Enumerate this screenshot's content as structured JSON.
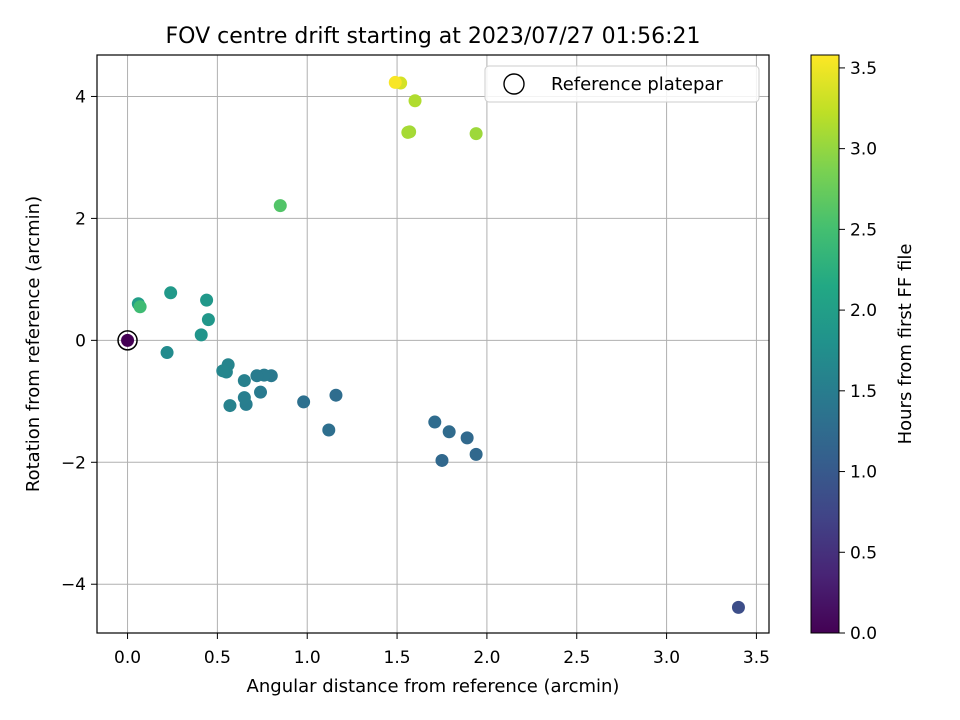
{
  "chart_data": {
    "type": "scatter",
    "title": "FOV centre drift starting at 2023/07/27 01:56:21",
    "xlabel": "Angular distance from reference (arcmin)",
    "ylabel": "Rotation from reference (arcmin)",
    "xlim": [
      -0.17,
      3.57
    ],
    "ylim": [
      -4.8,
      4.68
    ],
    "xticks": [
      "0.0",
      "0.5",
      "1.0",
      "1.5",
      "2.0",
      "2.5",
      "3.0",
      "3.5"
    ],
    "yticks": [
      "−4",
      "−2",
      "0",
      "2",
      "4"
    ],
    "grid": true,
    "legend": {
      "placement": "top-right",
      "entries": [
        "Reference platepar"
      ]
    },
    "colorbar": {
      "label": "Hours from first FF file",
      "range": [
        0.0,
        3.58
      ],
      "colormap": "viridis",
      "ticks": [
        "0.0",
        "0.5",
        "1.0",
        "1.5",
        "2.0",
        "2.5",
        "3.0",
        "3.5"
      ]
    },
    "reference_point": {
      "x": 0.0,
      "y": 0.0
    },
    "points": [
      {
        "x": 0.0,
        "y": 0.0,
        "hours": 0.0
      },
      {
        "x": 3.4,
        "y": -4.38,
        "hours": 0.85
      },
      {
        "x": 1.94,
        "y": -1.87,
        "hours": 1.2
      },
      {
        "x": 1.75,
        "y": -1.97,
        "hours": 1.2
      },
      {
        "x": 1.89,
        "y": -1.6,
        "hours": 1.22
      },
      {
        "x": 1.79,
        "y": -1.5,
        "hours": 1.24
      },
      {
        "x": 1.71,
        "y": -1.34,
        "hours": 1.26
      },
      {
        "x": 1.16,
        "y": -0.9,
        "hours": 1.28
      },
      {
        "x": 1.12,
        "y": -1.47,
        "hours": 1.3
      },
      {
        "x": 0.98,
        "y": -1.01,
        "hours": 1.32
      },
      {
        "x": 0.8,
        "y": -0.58,
        "hours": 1.45
      },
      {
        "x": 0.76,
        "y": -0.57,
        "hours": 1.47
      },
      {
        "x": 0.72,
        "y": -0.58,
        "hours": 1.48
      },
      {
        "x": 0.74,
        "y": -0.85,
        "hours": 1.46
      },
      {
        "x": 0.66,
        "y": -1.05,
        "hours": 1.5
      },
      {
        "x": 0.65,
        "y": -0.94,
        "hours": 1.52
      },
      {
        "x": 0.65,
        "y": -0.66,
        "hours": 1.55
      },
      {
        "x": 0.57,
        "y": -1.07,
        "hours": 1.57
      },
      {
        "x": 0.56,
        "y": -0.4,
        "hours": 1.6
      },
      {
        "x": 0.55,
        "y": -0.52,
        "hours": 1.62
      },
      {
        "x": 0.53,
        "y": -0.5,
        "hours": 1.63
      },
      {
        "x": 0.22,
        "y": -0.2,
        "hours": 1.7
      },
      {
        "x": 0.41,
        "y": 0.09,
        "hours": 1.85
      },
      {
        "x": 0.45,
        "y": 0.34,
        "hours": 1.88
      },
      {
        "x": 0.44,
        "y": 0.66,
        "hours": 1.9
      },
      {
        "x": 0.24,
        "y": 0.78,
        "hours": 1.92
      },
      {
        "x": 0.06,
        "y": 0.6,
        "hours": 2.0
      },
      {
        "x": 0.07,
        "y": 0.55,
        "hours": 2.45
      },
      {
        "x": 0.85,
        "y": 2.21,
        "hours": 2.6
      },
      {
        "x": 1.94,
        "y": 3.39,
        "hours": 3.05
      },
      {
        "x": 1.57,
        "y": 3.42,
        "hours": 3.08
      },
      {
        "x": 1.56,
        "y": 3.41,
        "hours": 3.1
      },
      {
        "x": 1.6,
        "y": 3.93,
        "hours": 3.15
      },
      {
        "x": 1.52,
        "y": 4.22,
        "hours": 3.35
      },
      {
        "x": 1.49,
        "y": 4.23,
        "hours": 3.55
      }
    ]
  }
}
